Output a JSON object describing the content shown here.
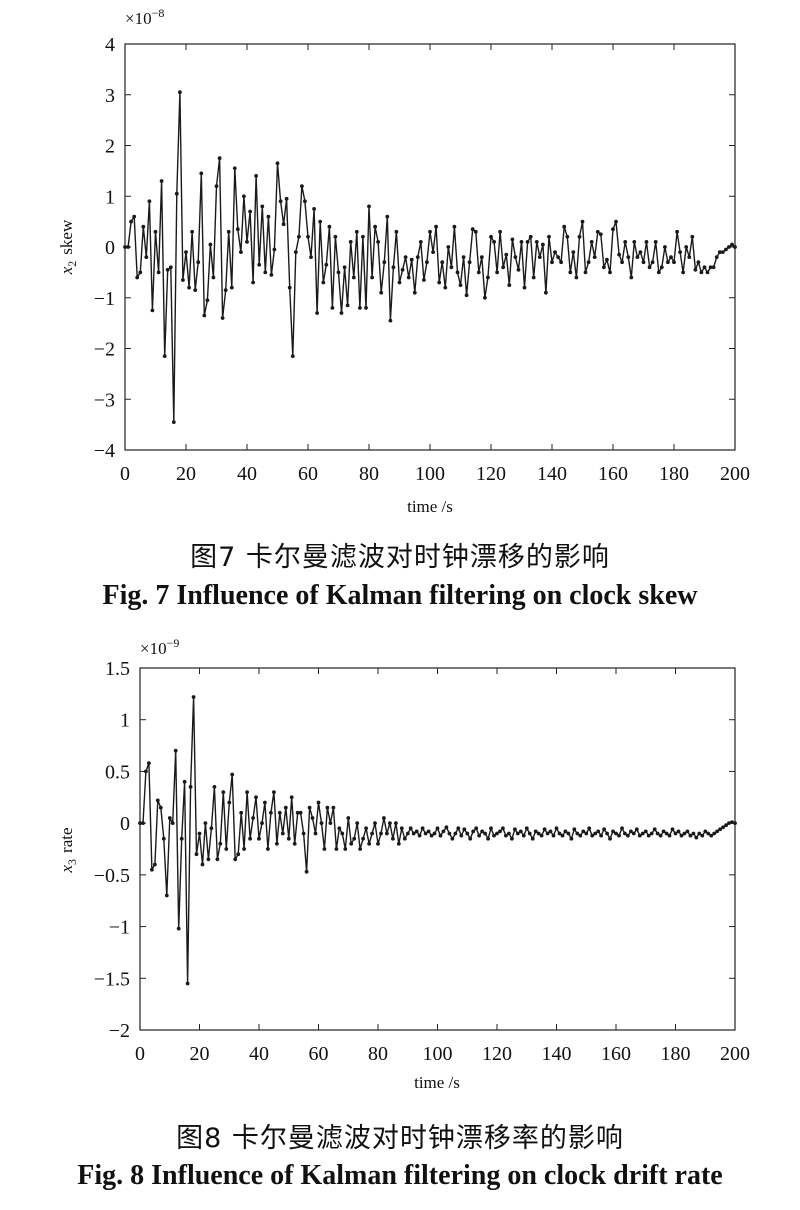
{
  "figures": [
    {
      "caption_cn": "图7  卡尔曼滤波对时钟漂移的影响",
      "caption_en": "Fig. 7  Influence of Kalman filtering on clock skew"
    },
    {
      "caption_cn": "图8  卡尔曼滤波对时钟漂移率的影响",
      "caption_en": "Fig. 8  Influence of Kalman filtering on clock drift rate"
    }
  ],
  "chart_data": [
    {
      "type": "line",
      "xlabel": "time  /s",
      "ylabel_var": "x",
      "ylabel_sub": "2",
      "ylabel_text": "skew",
      "exponent_base": "×10",
      "exponent_power": "−8",
      "xlim": [
        0,
        200
      ],
      "ylim": [
        -4,
        4
      ],
      "xticks": [
        0,
        20,
        40,
        60,
        80,
        100,
        120,
        140,
        160,
        180,
        200
      ],
      "xtick_labels": [
        "0",
        "20",
        "40",
        "60",
        "80",
        "100",
        "120",
        "140",
        "160",
        "180",
        "200"
      ],
      "yticks": [
        4,
        3,
        2,
        1,
        0,
        -1,
        -2,
        -3,
        -4
      ],
      "ytick_labels": [
        "4",
        "3",
        "2",
        "1",
        "0",
        "−1",
        "−2",
        "−3",
        "−4"
      ],
      "grid": false,
      "series": [
        {
          "color": "#1a1a1a",
          "x": [
            0,
            1,
            2,
            3,
            4,
            5,
            6,
            7,
            8,
            9,
            10,
            11,
            12,
            13,
            14,
            15,
            16,
            17,
            18,
            19,
            20,
            21,
            22,
            23,
            24,
            25,
            26,
            27,
            28,
            29,
            30,
            31,
            32,
            33,
            34,
            35,
            36,
            37,
            38,
            39,
            40,
            41,
            42,
            43,
            44,
            45,
            46,
            47,
            48,
            49,
            50,
            51,
            52,
            53,
            54,
            55,
            56,
            57,
            58,
            59,
            60,
            61,
            62,
            63,
            64,
            65,
            66,
            67,
            68,
            69,
            70,
            71,
            72,
            73,
            74,
            75,
            76,
            77,
            78,
            79,
            80,
            81,
            82,
            83,
            84,
            85,
            86,
            87,
            88,
            89,
            90,
            91,
            92,
            93,
            94,
            95,
            96,
            97,
            98,
            99,
            100,
            101,
            102,
            103,
            104,
            105,
            106,
            107,
            108,
            109,
            110,
            111,
            112,
            113,
            114,
            115,
            116,
            117,
            118,
            119,
            120,
            121,
            122,
            123,
            124,
            125,
            126,
            127,
            128,
            129,
            130,
            131,
            132,
            133,
            134,
            135,
            136,
            137,
            138,
            139,
            140,
            141,
            142,
            143,
            144,
            145,
            146,
            147,
            148,
            149,
            150,
            151,
            152,
            153,
            154,
            155,
            156,
            157,
            158,
            159,
            160,
            161,
            162,
            163,
            164,
            165,
            166,
            167,
            168,
            169,
            170,
            171,
            172,
            173,
            174,
            175,
            176,
            177,
            178,
            179,
            180,
            181,
            182,
            183,
            184,
            185,
            186,
            187,
            188,
            189,
            190,
            191,
            192,
            193,
            194,
            195,
            196,
            197,
            198,
            199,
            200
          ],
          "y": [
            0,
            0,
            0.5,
            0.6,
            -0.6,
            -0.5,
            0.4,
            -0.2,
            0.9,
            -1.25,
            0.3,
            -0.5,
            1.3,
            -2.15,
            -0.45,
            -0.4,
            -3.45,
            1.05,
            3.05,
            -0.65,
            -0.1,
            -0.8,
            0.3,
            -0.85,
            -0.3,
            1.45,
            -1.35,
            -1.05,
            0.05,
            -0.6,
            1.2,
            1.75,
            -1.4,
            -0.85,
            0.3,
            -0.8,
            1.55,
            0.35,
            -0.1,
            1.0,
            0.1,
            0.7,
            -0.7,
            1.4,
            -0.35,
            0.8,
            -0.5,
            0.6,
            -0.55,
            -0.05,
            1.65,
            0.9,
            0.45,
            0.95,
            -0.8,
            -2.15,
            -0.1,
            0.2,
            1.2,
            0.9,
            0.2,
            -0.2,
            0.75,
            -1.3,
            0.5,
            -0.7,
            -0.35,
            0.4,
            -1.2,
            0.2,
            -0.5,
            -1.3,
            -0.4,
            -1.15,
            0.1,
            -0.6,
            0.3,
            -1.2,
            0.2,
            -1.2,
            0.8,
            -0.6,
            0.4,
            0.1,
            -0.9,
            -0.3,
            0.6,
            -1.45,
            -0.4,
            0.3,
            -0.7,
            -0.45,
            -0.2,
            -0.6,
            -0.25,
            -0.9,
            -0.2,
            0.1,
            -0.65,
            -0.3,
            0.3,
            -0.1,
            0.4,
            -0.7,
            -0.3,
            -0.8,
            0.0,
            -0.4,
            0.4,
            -0.5,
            -0.75,
            -0.2,
            -0.95,
            -0.3,
            0.35,
            0.3,
            -0.5,
            -0.2,
            -1.0,
            -0.6,
            0.2,
            0.1,
            -0.5,
            0.3,
            -0.4,
            -0.15,
            -0.75,
            0.15,
            -0.2,
            -0.45,
            0.1,
            -0.8,
            0.1,
            0.2,
            -0.6,
            0.1,
            -0.2,
            0.05,
            -0.9,
            0.2,
            -0.3,
            -0.1,
            -0.2,
            -0.3,
            0.4,
            0.2,
            -0.5,
            -0.1,
            -0.6,
            0.2,
            0.5,
            -0.5,
            -0.3,
            0.1,
            -0.2,
            0.3,
            0.25,
            -0.4,
            -0.25,
            -0.5,
            0.35,
            0.5,
            -0.15,
            -0.3,
            0.1,
            -0.2,
            -0.6,
            0.1,
            -0.2,
            -0.1,
            -0.3,
            0.1,
            -0.4,
            -0.3,
            0.1,
            -0.5,
            -0.4,
            0.0,
            -0.3,
            -0.2,
            -0.3,
            0.3,
            -0.1,
            -0.5,
            0.0,
            -0.2,
            0.2,
            -0.45,
            -0.3,
            -0.5,
            -0.4,
            -0.5,
            -0.4,
            -0.4,
            -0.2,
            -0.1,
            -0.1,
            -0.05,
            0,
            0.05,
            0
          ]
        }
      ]
    },
    {
      "type": "line",
      "xlabel": "time  /s",
      "ylabel_var": "x",
      "ylabel_sub": "3",
      "ylabel_text": "rate",
      "exponent_base": "×10",
      "exponent_power": "−9",
      "xlim": [
        0,
        200
      ],
      "ylim": [
        -2,
        1.5
      ],
      "xticks": [
        0,
        20,
        40,
        60,
        80,
        100,
        120,
        140,
        160,
        180,
        200
      ],
      "xtick_labels": [
        "0",
        "20",
        "40",
        "60",
        "80",
        "100",
        "120",
        "140",
        "160",
        "180",
        "200"
      ],
      "yticks": [
        1.5,
        1,
        0.5,
        0,
        -0.5,
        -1,
        -1.5,
        -2
      ],
      "ytick_labels": [
        "1.5",
        "1",
        "0.5",
        "0",
        "−0.5",
        "−1",
        "−1.5",
        "−2"
      ],
      "grid": false,
      "series": [
        {
          "color": "#1a1a1a",
          "x": [
            0,
            1,
            2,
            3,
            4,
            5,
            6,
            7,
            8,
            9,
            10,
            11,
            12,
            13,
            14,
            15,
            16,
            17,
            18,
            19,
            20,
            21,
            22,
            23,
            24,
            25,
            26,
            27,
            28,
            29,
            30,
            31,
            32,
            33,
            34,
            35,
            36,
            37,
            38,
            39,
            40,
            41,
            42,
            43,
            44,
            45,
            46,
            47,
            48,
            49,
            50,
            51,
            52,
            53,
            54,
            55,
            56,
            57,
            58,
            59,
            60,
            61,
            62,
            63,
            64,
            65,
            66,
            67,
            68,
            69,
            70,
            71,
            72,
            73,
            74,
            75,
            76,
            77,
            78,
            79,
            80,
            81,
            82,
            83,
            84,
            85,
            86,
            87,
            88,
            89,
            90,
            91,
            92,
            93,
            94,
            95,
            96,
            97,
            98,
            99,
            100,
            101,
            102,
            103,
            104,
            105,
            106,
            107,
            108,
            109,
            110,
            111,
            112,
            113,
            114,
            115,
            116,
            117,
            118,
            119,
            120,
            121,
            122,
            123,
            124,
            125,
            126,
            127,
            128,
            129,
            130,
            131,
            132,
            133,
            134,
            135,
            136,
            137,
            138,
            139,
            140,
            141,
            142,
            143,
            144,
            145,
            146,
            147,
            148,
            149,
            150,
            151,
            152,
            153,
            154,
            155,
            156,
            157,
            158,
            159,
            160,
            161,
            162,
            163,
            164,
            165,
            166,
            167,
            168,
            169,
            170,
            171,
            172,
            173,
            174,
            175,
            176,
            177,
            178,
            179,
            180,
            181,
            182,
            183,
            184,
            185,
            186,
            187,
            188,
            189,
            190,
            191,
            192,
            193,
            194,
            195,
            196,
            197,
            198,
            199,
            200
          ],
          "y": [
            0,
            0,
            0.5,
            0.58,
            -0.45,
            -0.4,
            0.22,
            0.15,
            -0.15,
            -0.7,
            0.05,
            0,
            0.7,
            -1.02,
            -0.15,
            0.4,
            -1.55,
            0.35,
            1.22,
            -0.3,
            -0.1,
            -0.4,
            0,
            -0.35,
            -0.05,
            0.35,
            -0.35,
            -0.2,
            0.3,
            -0.25,
            0.2,
            0.47,
            -0.35,
            -0.3,
            0.1,
            -0.25,
            0.3,
            -0.15,
            0.05,
            0.25,
            -0.15,
            0,
            0.2,
            -0.25,
            0.1,
            0.3,
            -0.2,
            0.1,
            -0.1,
            0.15,
            -0.15,
            0.25,
            -0.2,
            0.1,
            0.1,
            -0.1,
            -0.47,
            0.15,
            0.05,
            -0.1,
            0.2,
            0,
            -0.25,
            0.15,
            0,
            0.15,
            -0.25,
            -0.05,
            -0.1,
            -0.25,
            0.05,
            -0.2,
            -0.15,
            0,
            -0.25,
            -0.15,
            -0.05,
            -0.2,
            -0.1,
            0,
            -0.2,
            -0.1,
            0.05,
            -0.1,
            0,
            -0.15,
            0,
            -0.2,
            -0.05,
            -0.15,
            -0.1,
            -0.05,
            -0.1,
            -0.08,
            -0.12,
            -0.05,
            -0.1,
            -0.08,
            -0.12,
            -0.1,
            -0.05,
            -0.12,
            -0.08,
            -0.04,
            -0.1,
            -0.15,
            -0.1,
            -0.05,
            -0.12,
            -0.06,
            -0.1,
            -0.15,
            -0.08,
            -0.05,
            -0.12,
            -0.08,
            -0.1,
            -0.15,
            -0.05,
            -0.12,
            -0.1,
            -0.08,
            -0.05,
            -0.12,
            -0.1,
            -0.15,
            -0.06,
            -0.1,
            -0.08,
            -0.12,
            -0.05,
            -0.1,
            -0.15,
            -0.08,
            -0.1,
            -0.12,
            -0.06,
            -0.1,
            -0.08,
            -0.12,
            -0.05,
            -0.1,
            -0.12,
            -0.08,
            -0.1,
            -0.15,
            -0.06,
            -0.1,
            -0.12,
            -0.08,
            -0.1,
            -0.05,
            -0.12,
            -0.1,
            -0.08,
            -0.12,
            -0.06,
            -0.1,
            -0.15,
            -0.08,
            -0.1,
            -0.12,
            -0.05,
            -0.1,
            -0.12,
            -0.08,
            -0.1,
            -0.06,
            -0.12,
            -0.1,
            -0.08,
            -0.12,
            -0.1,
            -0.06,
            -0.1,
            -0.12,
            -0.08,
            -0.1,
            -0.12,
            -0.06,
            -0.1,
            -0.08,
            -0.12,
            -0.1,
            -0.08,
            -0.12,
            -0.1,
            -0.14,
            -0.1,
            -0.12,
            -0.08,
            -0.1,
            -0.12,
            -0.1,
            -0.08,
            -0.06,
            -0.04,
            -0.02,
            0,
            0.01,
            0
          ]
        }
      ]
    }
  ]
}
